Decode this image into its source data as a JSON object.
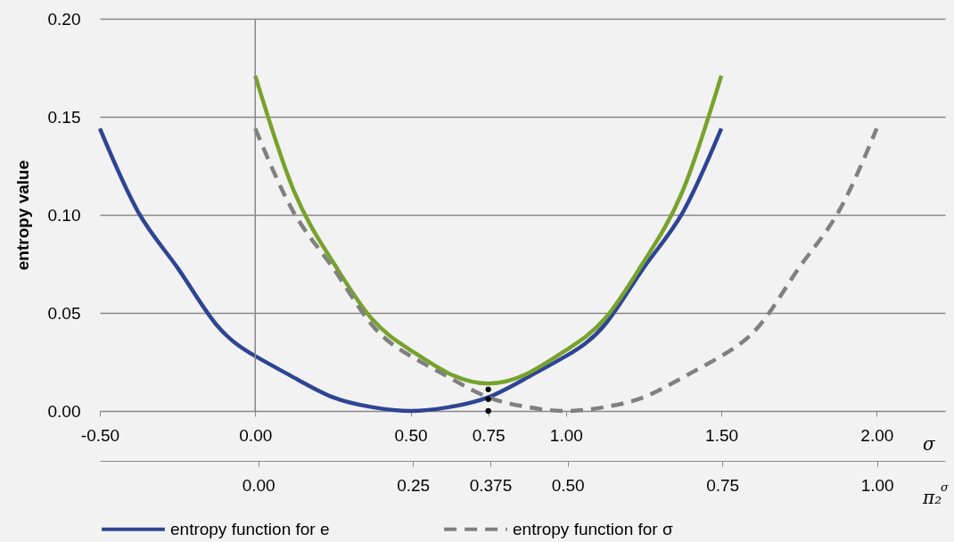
{
  "chart_data": {
    "type": "line",
    "ylabel": "entropy value",
    "xlabel": "σ",
    "x2label": "π₂$^{σ}$",
    "xlim": [
      -0.5,
      2.22
    ],
    "xticks": [
      {
        "value": -0.5,
        "label": "-0.50"
      },
      {
        "value": 0,
        "label": "0.00"
      },
      {
        "value": 0.5,
        "label": "0.50"
      },
      {
        "value": 0.75,
        "label": "0.75"
      },
      {
        "value": 1,
        "label": "1.00"
      },
      {
        "value": 1.5,
        "label": "1.50"
      },
      {
        "value": 2,
        "label": "2.00"
      }
    ],
    "x2lim": [
      -0.256,
      1.11
    ],
    "x2ticks": [
      {
        "value": 0,
        "label": "0.00"
      },
      {
        "value": 0.25,
        "label": "0.25"
      },
      {
        "value": 0.375,
        "label": "0.375"
      },
      {
        "value": 0.5,
        "label": "0.50"
      },
      {
        "value": 0.75,
        "label": "0.75"
      },
      {
        "value": 1,
        "label": "1.00"
      }
    ],
    "ylim": [
      0,
      0.2
    ],
    "yticks": [
      {
        "value": 0,
        "label": "0.00"
      },
      {
        "value": 0.05,
        "label": "0.05"
      },
      {
        "value": 0.1,
        "label": "0.10"
      },
      {
        "value": 0.15,
        "label": "0.15"
      },
      {
        "value": 0.2,
        "label": "0.20"
      }
    ],
    "grid": "y",
    "legend": "bottom",
    "ref_lines": [
      {
        "axis": "x",
        "value": 0,
        "color": "#888888"
      }
    ],
    "series": [
      {
        "name": "entropy function for e",
        "color": "#2e4593",
        "line_style": "solid",
        "x": [
          -0.5,
          -0.375,
          -0.25,
          -0.125,
          0,
          0.125,
          0.25,
          0.375,
          0.5,
          0.625,
          0.75,
          0.875,
          1.0,
          1.125,
          1.25,
          1.375,
          1.5
        ],
        "values": [
          0.144,
          0.101,
          0.073,
          0.044,
          0.028,
          0.017,
          0.007,
          0.002,
          0.0,
          0.002,
          0.007,
          0.017,
          0.028,
          0.044,
          0.073,
          0.101,
          0.144
        ]
      },
      {
        "color": "#77a22d",
        "line_style": "solid",
        "x": [
          0,
          0.125,
          0.25,
          0.375,
          0.5,
          0.625,
          0.75,
          0.875,
          1.0,
          1.125,
          1.25,
          1.375,
          1.5
        ],
        "values": [
          0.171,
          0.112,
          0.076,
          0.047,
          0.031,
          0.019,
          0.014,
          0.019,
          0.031,
          0.047,
          0.076,
          0.112,
          0.171
        ]
      },
      {
        "name": "entropy function for σ",
        "color": "#808080",
        "line_style": "dashed",
        "x": [
          0,
          0.125,
          0.25,
          0.375,
          0.5,
          0.625,
          0.75,
          0.875,
          1.0,
          1.125,
          1.25,
          1.375,
          1.5,
          1.625,
          1.75,
          1.875,
          2.0
        ],
        "values": [
          0.144,
          0.101,
          0.073,
          0.044,
          0.028,
          0.017,
          0.007,
          0.002,
          0.0,
          0.002,
          0.007,
          0.017,
          0.028,
          0.044,
          0.073,
          0.101,
          0.144
        ]
      },
      {
        "color": "#000000",
        "type": "scatter",
        "marker": "circle",
        "x": [
          0.75,
          0.75,
          0.75
        ],
        "values": [
          0.011,
          0.006,
          0.0
        ]
      }
    ]
  }
}
